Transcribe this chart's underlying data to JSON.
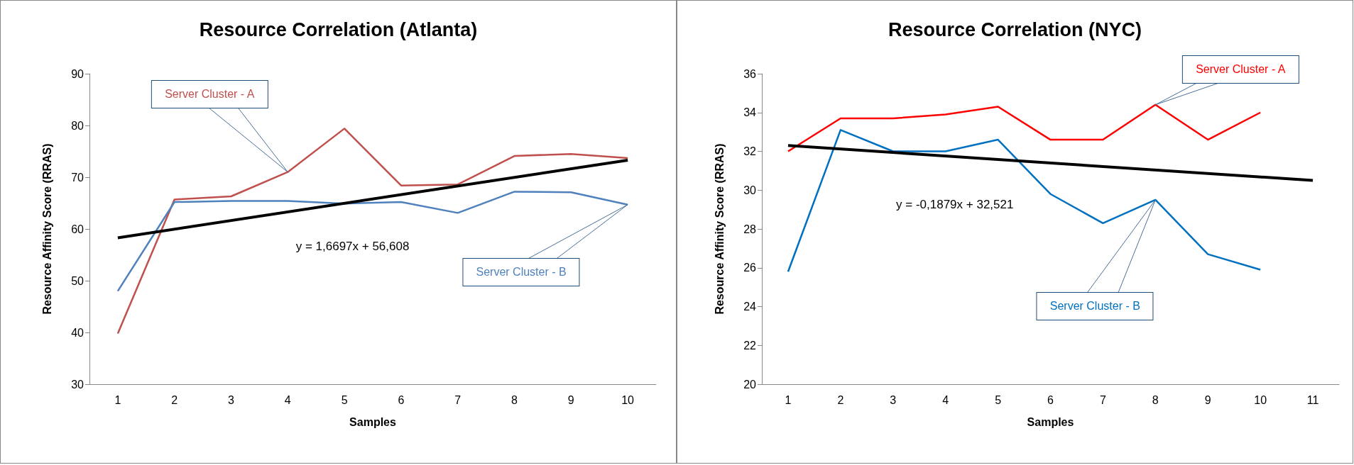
{
  "chart_data": [
    {
      "type": "line",
      "title": "Resource Correlation (Atlanta)",
      "xlabel": "Samples",
      "ylabel": "Resource Affinity Score (RRAS)",
      "categories": [
        "1",
        "2",
        "3",
        "4",
        "5",
        "6",
        "7",
        "8",
        "9",
        "10"
      ],
      "marker": "none",
      "series": [
        {
          "name": "Server Cluster - A",
          "color": "#c0504d",
          "values": [
            39.8,
            65.7,
            66.3,
            71,
            79.4,
            68.4,
            68.6,
            74.1,
            74.5,
            73.7
          ]
        },
        {
          "name": "Server Cluster - B",
          "color": "#4f81bd",
          "values": [
            48,
            65.2,
            65.4,
            65.4,
            64.9,
            65.2,
            63.1,
            67.2,
            67.1,
            64.7
          ]
        },
        {
          "type": "line",
          "color": "#000000",
          "x": [
            "1",
            "10"
          ],
          "values": [
            58.3,
            73.3
          ]
        }
      ],
      "ylim": [
        30,
        90
      ],
      "yticks": [
        30,
        40,
        50,
        60,
        70,
        80,
        90
      ],
      "annotations": [
        "y = 1,6697x + 56,608"
      ]
    },
    {
      "type": "line",
      "title": "Resource Correlation (NYC)",
      "xlabel": "Samples",
      "ylabel": "Resource Affinity Score (RRAS)",
      "categories": [
        "1",
        "2",
        "3",
        "4",
        "5",
        "6",
        "7",
        "8",
        "9",
        "10",
        "11"
      ],
      "marker": "none",
      "series": [
        {
          "name": "Server Cluster - A",
          "color": "#ff0000",
          "values": [
            32,
            33.7,
            33.7,
            33.9,
            34.3,
            32.6,
            32.6,
            34.4,
            32.6,
            34,
            null
          ]
        },
        {
          "name": "Server Cluster - B",
          "color": "#0070c0",
          "values": [
            25.8,
            33.1,
            32,
            32,
            32.6,
            29.8,
            28.3,
            29.5,
            26.7,
            25.9,
            null
          ]
        },
        {
          "type": "line",
          "color": "#000000",
          "x": [
            "1",
            "11"
          ],
          "values": [
            32.3,
            30.5
          ]
        }
      ],
      "ylim": [
        20,
        36
      ],
      "yticks": [
        20,
        22,
        24,
        26,
        28,
        30,
        32,
        34,
        36
      ],
      "annotations": [
        "y = -0,1879x + 32,521"
      ]
    }
  ]
}
